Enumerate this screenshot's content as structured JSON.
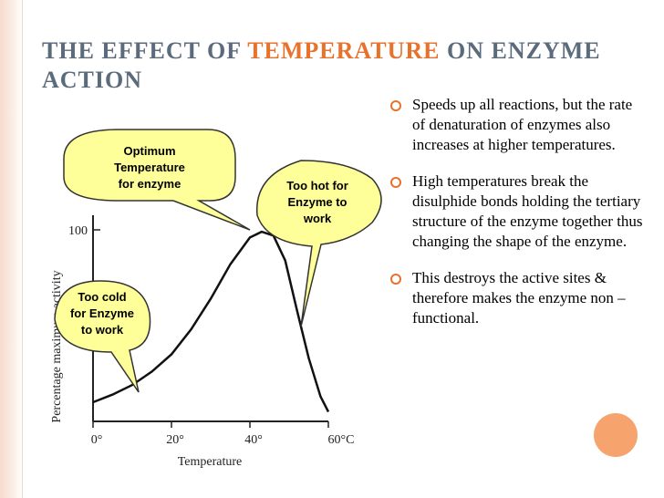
{
  "slide": {
    "title_part1": "THE EFFECT OF ",
    "title_accent": "TEMPERATURE",
    "title_part2": " ON ENZYME ACTION",
    "accent_color": "#e8712c",
    "title_color": "#5b6b7c",
    "bullets": [
      {
        "text": "Speeds up all reactions, but the rate of denaturation of enzymes also increases at higher temperatures."
      },
      {
        "text": "High temperatures break the disulphide bonds holding the tertiary structure of the enzyme together thus changing the shape of the enzyme."
      },
      {
        "text": "This destroys the active sites & therefore makes the enzyme non – functional."
      }
    ]
  },
  "callouts": {
    "optimum": [
      "Optimum",
      "Temperature",
      "for enzyme"
    ],
    "too_hot": [
      "Too hot for",
      "Enzyme to",
      "work"
    ],
    "too_cold": [
      "Too cold",
      "for Enzyme",
      "to work"
    ],
    "fill_color": "#ffff99"
  },
  "chart_data": {
    "type": "line",
    "xlabel": "Temperature",
    "ylabel": "Percentage maximum activity",
    "x_tick_labels": [
      "0°",
      "20°",
      "40°",
      "60°C"
    ],
    "y_tick_labels": [
      "100"
    ],
    "xlim": [
      0,
      60
    ],
    "ylim": [
      0,
      100
    ],
    "series": [
      {
        "x": [
          0,
          5,
          10,
          15,
          20,
          25,
          30,
          35,
          40,
          43,
          46,
          49,
          52,
          55,
          58,
          60
        ],
        "y": [
          10,
          14,
          19,
          26,
          35,
          48,
          64,
          82,
          96,
          99,
          97,
          84,
          58,
          33,
          13,
          5
        ]
      }
    ]
  }
}
